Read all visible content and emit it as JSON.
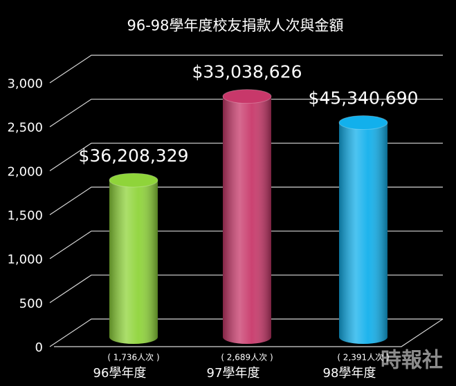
{
  "chart_data": {
    "type": "bar",
    "title": "96-98學年度校友捐款人次與金額",
    "categories": [
      "96學年度",
      "97學年度",
      "98學年度"
    ],
    "values": [
      1736,
      2689,
      2391
    ],
    "value_labels": [
      "( 1,736人次 )",
      "( 2,689人次 )",
      "( 2,391人次 )"
    ],
    "amount_labels": [
      "$36,208,329",
      "$33,038,626",
      "$45,340,690"
    ],
    "colors": [
      "#8fd43a",
      "#c8386a",
      "#12b0ec"
    ],
    "ylim": [
      0,
      3000
    ],
    "yticks": [
      0,
      {
        "value": 500,
        "label": "500"
      },
      {
        "value": 1000,
        "label": "1,000"
      },
      {
        "value": 1500,
        "label": "1,500"
      },
      {
        "value": 2000,
        "label": "2,000"
      },
      {
        "value": 2500,
        "label": "2,500"
      },
      {
        "value": 3000,
        "label": "3,000"
      }
    ],
    "grid": true,
    "watermark": "時報社"
  }
}
